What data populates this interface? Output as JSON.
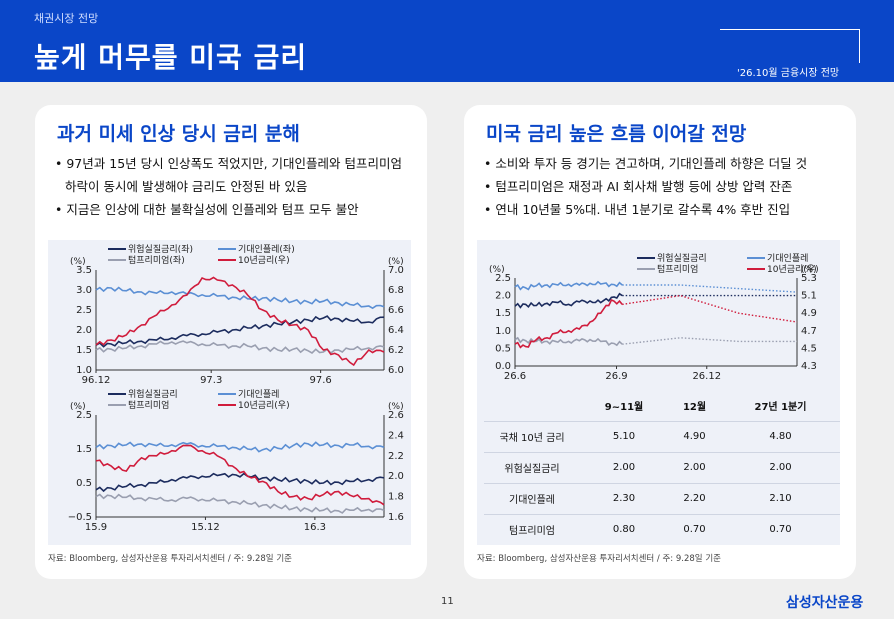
{
  "header": {
    "section": "채권시장 전망",
    "title": "높게 머무를 미국 금리",
    "tag": "'26.10월 금융시장 전망"
  },
  "left": {
    "title": "과거 미세 인상 당시 금리 분해",
    "bullets": [
      "97년과 15년 당시 인상폭도 적었지만, 기대인플레와 텀프리미엄 하락이 동시에 발생해야 금리도 안정된 바 있음",
      "지금은 인상에 대한 불확실성에 인플레와 텀프 모두 불안"
    ],
    "source": "자료: Bloomberg, 삼성자산운용 투자리서치센터 / 주: 9.28일 기준"
  },
  "right": {
    "title": "미국 금리 높은 흐름 이어갈 전망",
    "bullets": [
      "소비와 투자 등 경기는 견고하며, 기대인플레 하향은 더딜 것",
      "텀프리미엄은 재정과 AI 회사채 발행 등에 상방 압력 잔존",
      "연내 10년물 5%대. 내년 1분기로 갈수록 4% 후반 진입"
    ],
    "source": "자료: Bloomberg, 삼성자산운용 투자리서치센터 / 주: 9.28일 기준",
    "table": {
      "headers": [
        "",
        "9~11월",
        "12월",
        "27년 1분기"
      ],
      "rows": [
        {
          "label": "국채 10년 금리",
          "values": [
            "5.10",
            "4.90",
            "4.80"
          ]
        },
        {
          "label": "위험실질금리",
          "values": [
            "2.00",
            "2.00",
            "2.00"
          ]
        },
        {
          "label": "기대인플레",
          "values": [
            "2.30",
            "2.20",
            "2.10"
          ]
        },
        {
          "label": "텀프리미엄",
          "values": [
            "0.80",
            "0.70",
            "0.70"
          ]
        }
      ]
    }
  },
  "footer": {
    "page": "11",
    "logo": "삼성자산운용"
  },
  "chart_data": [
    {
      "type": "line",
      "left_unit": "(%)",
      "right_unit": "(%)",
      "x_ticks": [
        "96.12",
        "97.3",
        "97.6"
      ],
      "ylim_left": [
        1.0,
        3.5
      ],
      "yticks_left": [
        "3.5",
        "3.0",
        "2.5",
        "2.0",
        "1.5",
        "1.0"
      ],
      "ylim_right": [
        6.0,
        7.0
      ],
      "yticks_right": [
        "7.0",
        "6.8",
        "6.6",
        "6.4",
        "6.2",
        "6.0"
      ],
      "legend": [
        "위험실질금리(좌)",
        "기대인플레(좌)",
        "텀프리미엄(좌)",
        "10년금리(우)"
      ],
      "series": [
        {
          "name": "위험실질금리(좌)",
          "color": "#1c2c5e",
          "axis": "left",
          "values": [
            1.62,
            1.65,
            1.68,
            1.72,
            1.75,
            1.8,
            1.86,
            1.9,
            1.95,
            2.0,
            2.05,
            2.1,
            2.15,
            2.2,
            2.25,
            2.3,
            2.28,
            2.22,
            2.2,
            2.32
          ]
        },
        {
          "name": "기대인플레(좌)",
          "color": "#5b8fd4",
          "axis": "left",
          "values": [
            3.0,
            3.05,
            2.98,
            2.95,
            2.92,
            2.95,
            2.9,
            2.88,
            2.85,
            2.82,
            2.78,
            2.8,
            2.75,
            2.72,
            2.7,
            2.72,
            2.68,
            2.62,
            2.6,
            2.58
          ]
        },
        {
          "name": "텀프리미엄(좌)",
          "color": "#9a9fb0",
          "axis": "left",
          "values": [
            1.5,
            1.52,
            1.55,
            1.6,
            1.65,
            1.7,
            1.68,
            1.65,
            1.62,
            1.6,
            1.6,
            1.55,
            1.5,
            1.52,
            1.48,
            1.45,
            1.5,
            1.52,
            1.55,
            1.58
          ]
        },
        {
          "name": "10년금리(우)",
          "color": "#d01c3c",
          "axis": "right",
          "values": [
            6.25,
            6.3,
            6.35,
            6.45,
            6.55,
            6.65,
            6.75,
            6.92,
            6.9,
            6.85,
            6.75,
            6.6,
            6.5,
            6.45,
            6.4,
            6.2,
            6.15,
            6.05,
            6.2,
            6.18
          ]
        }
      ]
    },
    {
      "type": "line",
      "left_unit": "(%)",
      "right_unit": "(%)",
      "x_ticks": [
        "15.9",
        "15.12",
        "16.3"
      ],
      "ylim_left": [
        -0.5,
        2.5
      ],
      "yticks_left": [
        "2.5",
        "1.5",
        "0.5",
        "−0.5"
      ],
      "ylim_right": [
        1.6,
        2.6
      ],
      "yticks_right": [
        "2.6",
        "2.4",
        "2.2",
        "2.0",
        "1.8",
        "1.6"
      ],
      "legend": [
        "위험실질금리",
        "기대인플레",
        "텀프리미엄",
        "10년금리(우)"
      ],
      "series": [
        {
          "name": "위험실질금리",
          "color": "#1c2c5e",
          "axis": "left",
          "values": [
            0.3,
            0.35,
            0.4,
            0.45,
            0.5,
            0.6,
            0.65,
            0.7,
            0.72,
            0.75,
            0.7,
            0.65,
            0.6,
            0.58,
            0.55,
            0.5,
            0.52,
            0.55,
            0.6,
            0.65
          ]
        },
        {
          "name": "기대인플레",
          "color": "#5b8fd4",
          "axis": "left",
          "values": [
            1.55,
            1.6,
            1.62,
            1.65,
            1.6,
            1.62,
            1.65,
            1.6,
            1.58,
            1.55,
            1.5,
            1.48,
            1.52,
            1.6,
            1.65,
            1.62,
            1.6,
            1.62,
            1.58,
            1.55
          ]
        },
        {
          "name": "텀프리미엄",
          "color": "#9a9fb0",
          "axis": "left",
          "values": [
            0.1,
            0.12,
            0.08,
            0.05,
            0.02,
            0.0,
            0.05,
            0.02,
            -0.02,
            -0.05,
            -0.1,
            -0.15,
            -0.2,
            -0.25,
            -0.28,
            -0.3,
            -0.32,
            -0.3,
            -0.28,
            -0.3
          ]
        },
        {
          "name": "10년금리(우)",
          "color": "#d01c3c",
          "axis": "right",
          "values": [
            2.15,
            2.1,
            2.05,
            2.18,
            2.2,
            2.25,
            2.3,
            2.25,
            2.2,
            2.1,
            2.0,
            1.95,
            1.85,
            1.8,
            1.78,
            1.82,
            1.85,
            1.8,
            1.78,
            1.72
          ]
        }
      ]
    },
    {
      "type": "line",
      "left_unit": "(%)",
      "right_unit": "(%)",
      "x_ticks": [
        "26.6",
        "26.9",
        "26.12"
      ],
      "ylim_left": [
        0.0,
        2.5
      ],
      "yticks_left": [
        "2.5",
        "2.0",
        "1.5",
        "1.0",
        "0.5",
        "0.0"
      ],
      "ylim_right": [
        4.3,
        5.3
      ],
      "yticks_right": [
        "5.3",
        "5.1",
        "4.9",
        "4.7",
        "4.5",
        "4.3"
      ],
      "legend": [
        "위험실질금리",
        "기대인플레",
        "텀프리미엄",
        "10년금리(우)"
      ],
      "series": [
        {
          "name": "위험실질금리",
          "color": "#1c2c5e",
          "axis": "left",
          "values": [
            1.7,
            1.75,
            1.72,
            1.78,
            1.8,
            1.75,
            1.82,
            1.85,
            1.8,
            1.95,
            2.0
          ],
          "forecast": [
            2.0,
            2.0,
            2.0
          ]
        },
        {
          "name": "기대인플레",
          "color": "#5b8fd4",
          "axis": "left",
          "values": [
            2.25,
            2.22,
            2.28,
            2.3,
            2.3,
            2.32,
            2.3,
            2.35,
            2.33,
            2.32,
            2.3
          ],
          "forecast": [
            2.3,
            2.2,
            2.1
          ]
        },
        {
          "name": "텀프리미엄",
          "color": "#9a9fb0",
          "axis": "left",
          "values": [
            0.75,
            0.72,
            0.7,
            0.7,
            0.68,
            0.7,
            0.72,
            0.75,
            0.7,
            0.65,
            0.62
          ],
          "forecast": [
            0.8,
            0.7,
            0.7
          ]
        },
        {
          "name": "10년금리(우)",
          "color": "#d01c3c",
          "axis": "right",
          "values": [
            4.55,
            4.52,
            4.6,
            4.62,
            4.68,
            4.7,
            4.72,
            4.8,
            4.9,
            5.05,
            5.0
          ],
          "forecast": [
            5.1,
            4.9,
            4.8
          ]
        }
      ]
    }
  ]
}
